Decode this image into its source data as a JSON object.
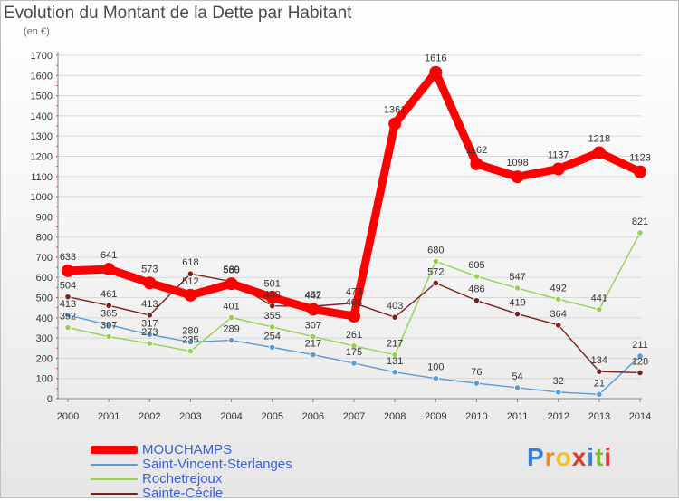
{
  "chart_data": {
    "type": "line",
    "title": "Evolution du Montant de la Dette par Habitant",
    "subtitle": "(en €)",
    "x": [
      "2000",
      "2001",
      "2002",
      "2003",
      "2004",
      "2005",
      "2006",
      "2007",
      "2008",
      "2009",
      "2010",
      "2011",
      "2012",
      "2013",
      "2014"
    ],
    "ylim": [
      0,
      1700
    ],
    "yticks": [
      0,
      100,
      200,
      300,
      400,
      500,
      600,
      700,
      800,
      900,
      1000,
      1100,
      1200,
      1300,
      1400,
      1500,
      1600,
      1700
    ],
    "grid": true,
    "legend_position": "bottom-left",
    "series": [
      {
        "name": "MOUCHAMPS",
        "color": "#ff0000",
        "values": [
          633,
          641,
          573,
          512,
          569,
          501,
          442,
          408,
          1361,
          1616,
          1162,
          1098,
          1137,
          1218,
          1123
        ],
        "labels": [
          "633",
          "641",
          "573",
          "512",
          "569",
          "501",
          "442",
          "408",
          "1361",
          "1616",
          "1162",
          "1098",
          "1137",
          "1218",
          "1123"
        ]
      },
      {
        "name": "Saint-Vincent-Sterlanges",
        "color": "#5a9bd5",
        "values": [
          413,
          365,
          317,
          280,
          289,
          254,
          217,
          175,
          131,
          100,
          76,
          54,
          32,
          21,
          211
        ],
        "labels": [
          "413",
          "365",
          "317",
          "280",
          "289",
          "254",
          "217",
          "175",
          "131",
          "100",
          "76",
          "54",
          "32",
          "21",
          "211"
        ]
      },
      {
        "name": "Rochetrejoux",
        "color": "#96d050",
        "values": [
          352,
          307,
          273,
          235,
          401,
          355,
          307,
          261,
          217,
          680,
          605,
          547,
          492,
          441,
          821
        ],
        "labels": [
          "352",
          "307",
          "273",
          "235",
          "401",
          "355",
          "307",
          "261",
          "217",
          "680",
          "605",
          "547",
          "492",
          "441",
          "821"
        ]
      },
      {
        "name": "Sainte-Cécile",
        "color": "#7a2020",
        "values": [
          504,
          461,
          413,
          618,
          580,
          459,
          457,
          473,
          403,
          572,
          486,
          419,
          364,
          134,
          128
        ],
        "labels": [
          "504",
          "461",
          "413",
          "618",
          "580",
          "459",
          "457",
          "473",
          "403",
          "572",
          "486",
          "419",
          "364",
          "134",
          "128"
        ]
      }
    ]
  },
  "logo": {
    "letters": [
      "P",
      "r",
      "o",
      "x",
      "i",
      "t",
      "i"
    ],
    "colors": [
      "#3a7fd5",
      "#f08c1e",
      "#f2c21b",
      "#e03b2f",
      "#3a7fd5",
      "#7dbb32",
      "#e03b2f"
    ]
  }
}
